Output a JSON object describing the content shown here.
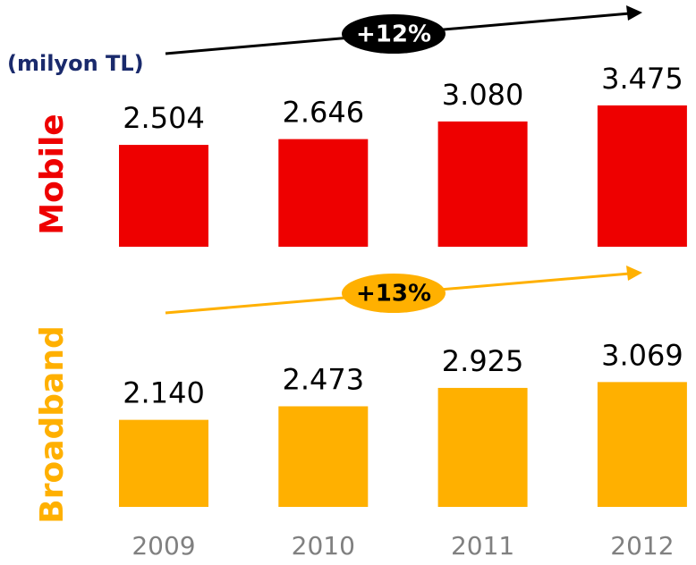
{
  "chart_data": {
    "type": "bar",
    "subtitle": "(milyon TL)",
    "categories": [
      "2009",
      "2010",
      "2011",
      "2012"
    ],
    "series": [
      {
        "name": "Mobile",
        "color": "#ee0000",
        "annotation": "+12%",
        "annotation_color": "#000000",
        "annotation_text_color": "#ffffff",
        "values": [
          2504,
          2646,
          3080,
          3475
        ],
        "value_labels": [
          "2.504",
          "2.646",
          "3.080",
          "3.475"
        ]
      },
      {
        "name": "Broadband",
        "color": "#ffb000",
        "annotation": "+13%",
        "annotation_color": "#ffb000",
        "annotation_text_color": "#000000",
        "values": [
          2140,
          2473,
          2925,
          3069
        ],
        "value_labels": [
          "2.140",
          "2.473",
          "2.925",
          "3.069"
        ]
      }
    ]
  }
}
